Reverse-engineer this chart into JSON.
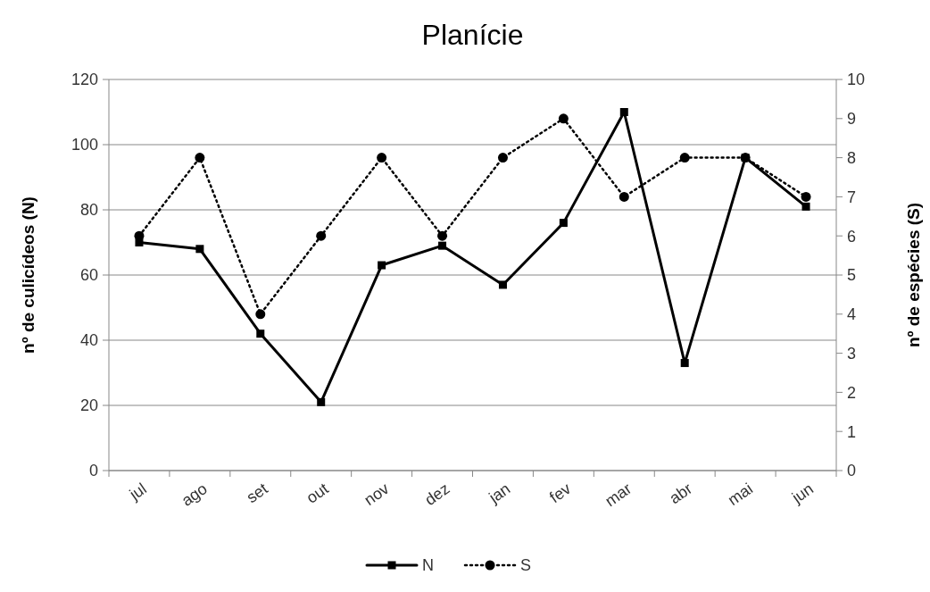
{
  "chart_data": {
    "type": "line",
    "title": "Planície",
    "ylabel": "nº de culicídeos (N)",
    "y2label": "nº de espécies (S)",
    "categories": [
      "jul",
      "ago",
      "set",
      "out",
      "nov",
      "dez",
      "jan",
      "fev",
      "mar",
      "abr",
      "mai",
      "jun"
    ],
    "series": [
      {
        "name": "N",
        "color": "#000000",
        "values": [
          70,
          68,
          42,
          21,
          63,
          69,
          57,
          76,
          110,
          33,
          96,
          81
        ],
        "marker": "square",
        "line_style": "solid"
      },
      {
        "name": "S",
        "color": "#000000",
        "axis": "y2",
        "values": [
          6,
          8,
          4,
          6,
          8,
          6,
          8,
          9,
          7,
          8,
          8,
          7
        ],
        "marker": "circle",
        "line_style": "dotted"
      }
    ],
    "ylim": [
      0,
      120
    ],
    "yticks": [
      0,
      20,
      40,
      60,
      80,
      100,
      120
    ],
    "y2lim": [
      0,
      10
    ],
    "y2ticks": [
      0,
      1,
      2,
      3,
      4,
      5,
      6,
      7,
      8,
      9,
      10
    ],
    "grid": "y",
    "legend": "bottom"
  }
}
